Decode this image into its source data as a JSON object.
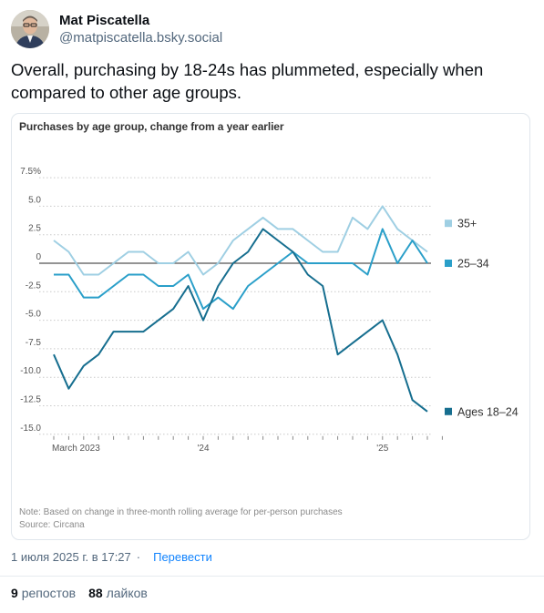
{
  "post": {
    "author_name": "Mat Piscatella",
    "author_handle": "@matpiscatella.bsky.social",
    "text": "Overall, purchasing by 18-24s has plummeted, especially when compared to other age groups.",
    "timestamp": "1 июля 2025 г. в 17:27",
    "translate_label": "Перевести",
    "dot": "·",
    "reposts_count": "9",
    "reposts_label": "репостов",
    "likes_count": "88",
    "likes_label": "лайков"
  },
  "chart": {
    "title": "Purchases by age group, change from a year earlier",
    "note": "Note: Based on change in three-month rolling average for per-person purchases",
    "source": "Source: Circana"
  },
  "colors": {
    "series_35": "#9fcfe3",
    "series_25_34": "#2a9fc9",
    "series_18_24": "#166e8f",
    "zero_line": "#555555",
    "grid": "#c9c9c9",
    "link": "#1083fe"
  },
  "chart_data": {
    "type": "line",
    "title": "Purchases by age group, change from a year earlier",
    "x": [
      "Mar 2023",
      "Apr 2023",
      "May 2023",
      "Jun 2023",
      "Jul 2023",
      "Aug 2023",
      "Sep 2023",
      "Oct 2023",
      "Nov 2023",
      "Dec 2023",
      "Jan 2024",
      "Feb 2024",
      "Mar 2024",
      "Apr 2024",
      "May 2024",
      "Jun 2024",
      "Jul 2024",
      "Aug 2024",
      "Sep 2024",
      "Oct 2024",
      "Nov 2024",
      "Dec 2024",
      "Jan 2025",
      "Feb 2025",
      "Mar 2025",
      "Apr 2025",
      "May 2025"
    ],
    "x_tick_labels": [
      "March 2023",
      "'24",
      "'25"
    ],
    "y_ticks": [
      "7.5%",
      "5.0",
      "2.5",
      "0",
      "-2.5",
      "-5.0",
      "-7.5",
      "-10.0",
      "-12.5",
      "-15.0"
    ],
    "ylim": [
      -15,
      7.5
    ],
    "unit": "%",
    "series": [
      {
        "name": "35+",
        "values": [
          2,
          1,
          -1,
          -1,
          0,
          1,
          1,
          0,
          0,
          1,
          -1,
          0,
          2,
          3,
          4,
          3,
          3,
          2,
          1,
          1,
          4,
          3,
          5,
          3,
          2,
          1,
          null
        ]
      },
      {
        "name": "25–34",
        "values": [
          -1,
          -1,
          -3,
          -3,
          -2,
          -1,
          -1,
          -2,
          -2,
          -1,
          -4,
          -3,
          -4,
          -2,
          -1,
          0,
          1,
          0,
          0,
          0,
          0,
          -1,
          3,
          0,
          2,
          0,
          null
        ]
      },
      {
        "name": "Ages 18–24",
        "values": [
          -8,
          -11,
          -9,
          -8,
          -6,
          -6,
          -6,
          -5,
          -4,
          -2,
          -5,
          -2,
          0,
          1,
          3,
          2,
          1,
          -1,
          -2,
          -8,
          -7,
          -6,
          -5,
          -8,
          -12,
          -13,
          null
        ]
      }
    ],
    "legend": "right, at line ends"
  }
}
